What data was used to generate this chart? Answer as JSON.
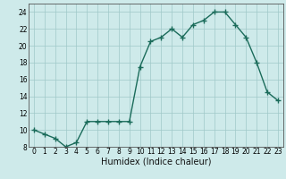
{
  "x": [
    0,
    1,
    2,
    3,
    4,
    5,
    6,
    7,
    8,
    9,
    10,
    11,
    12,
    13,
    14,
    15,
    16,
    17,
    18,
    19,
    20,
    21,
    22,
    23
  ],
  "y": [
    10,
    9.5,
    9,
    8,
    8.5,
    11,
    11,
    11,
    11,
    11,
    17.5,
    20.5,
    21,
    22,
    21,
    22.5,
    23,
    24,
    24,
    22.5,
    21,
    18,
    14.5,
    13.5
  ],
  "line_color": "#1a6b5a",
  "marker": "+",
  "marker_size": 4,
  "marker_lw": 1.0,
  "line_width": 1.0,
  "bg_color": "#ceeaea",
  "grid_color": "#a0c8c8",
  "xlabel": "Humidex (Indice chaleur)",
  "xlim": [
    -0.5,
    23.5
  ],
  "ylim": [
    8,
    25
  ],
  "yticks": [
    8,
    10,
    12,
    14,
    16,
    18,
    20,
    22,
    24
  ],
  "xticks": [
    0,
    1,
    2,
    3,
    4,
    5,
    6,
    7,
    8,
    9,
    10,
    11,
    12,
    13,
    14,
    15,
    16,
    17,
    18,
    19,
    20,
    21,
    22,
    23
  ],
  "tick_label_fontsize": 5.5,
  "xlabel_fontsize": 7.0
}
